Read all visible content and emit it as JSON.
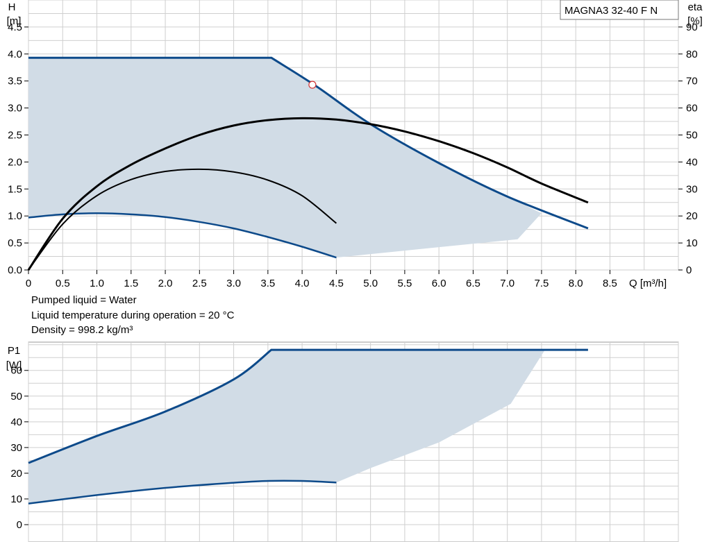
{
  "pump_model": "MAGNA3 32-40 F N",
  "liquid_info": [
    "Pumped liquid = Water",
    "Liquid temperature during operation = 20 °C",
    "Density = 998.2 kg/m³"
  ],
  "colors": {
    "curve_blue": "#0d4a8a",
    "area_fill": "#d1dce6",
    "efficiency_black": "#000000",
    "grid": "#cfcfcf",
    "duty_point": "#d33333"
  },
  "chart_data": [
    {
      "type": "line",
      "xlabel": "Q [m³/h]",
      "ylabel_line1": "H",
      "ylabel_line2": "[m]",
      "y2label_line1": "eta",
      "y2label_line2": "[%]",
      "xlim": [
        0,
        9.5
      ],
      "ylim": [
        0,
        5.0
      ],
      "y2lim": [
        0,
        100
      ],
      "grid": true,
      "x_ticks": [
        "0",
        "0.5",
        "1.0",
        "1.5",
        "2.0",
        "2.5",
        "3.0",
        "3.5",
        "4.0",
        "4.5",
        "5.0",
        "5.5",
        "6.0",
        "6.5",
        "7.0",
        "7.5",
        "8.0",
        "8.5"
      ],
      "x_tick_values": [
        0,
        0.5,
        1.0,
        1.5,
        2.0,
        2.5,
        3.0,
        3.5,
        4.0,
        4.5,
        5.0,
        5.5,
        6.0,
        6.5,
        7.0,
        7.5,
        8.0,
        8.5
      ],
      "y_ticks": [
        "0.0",
        "0.5",
        "1.0",
        "1.5",
        "2.0",
        "2.5",
        "3.0",
        "3.5",
        "4.0",
        "4.5"
      ],
      "y_tick_values": [
        0,
        0.5,
        1.0,
        1.5,
        2.0,
        2.5,
        3.0,
        3.5,
        4.0,
        4.5
      ],
      "y2_ticks": [
        "0",
        "10",
        "20",
        "30",
        "40",
        "50",
        "60",
        "70",
        "80",
        "90"
      ],
      "y2_tick_values": [
        0,
        10,
        20,
        30,
        40,
        50,
        60,
        70,
        80,
        90
      ],
      "series": [
        {
          "role": "max_head_curve",
          "axis": "left",
          "x": [
            0,
            3.55,
            4.2,
            5.0,
            6.0,
            7.0,
            8.18
          ],
          "y": [
            3.93,
            3.93,
            3.41,
            2.7,
            1.98,
            1.36,
            0.77
          ]
        },
        {
          "role": "min_head_curve",
          "axis": "left",
          "x": [
            0,
            0.5,
            1.0,
            1.5,
            2.0,
            2.5,
            3.0,
            3.5,
            4.0,
            4.5
          ],
          "y": [
            0.97,
            1.03,
            1.05,
            1.03,
            0.98,
            0.89,
            0.77,
            0.61,
            0.43,
            0.23
          ]
        },
        {
          "role": "operating_area",
          "axis": "left",
          "x": [
            0,
            3.55,
            4.2,
            5.0,
            6.0,
            7.0,
            7.5,
            7.15,
            4.5,
            4.0,
            3.5,
            3.0,
            2.5,
            2.0,
            1.5,
            1.0,
            0.5,
            0
          ],
          "y": [
            3.93,
            3.93,
            3.41,
            2.7,
            1.98,
            1.36,
            1.05,
            0.57,
            0.23,
            0.43,
            0.61,
            0.77,
            0.89,
            0.98,
            1.03,
            1.05,
            1.03,
            0.97
          ]
        },
        {
          "role": "efficiency_max_curve",
          "axis": "right",
          "x": [
            0,
            0.5,
            1.0,
            1.5,
            2.0,
            2.5,
            3.0,
            3.5,
            4.0,
            4.5,
            5.0,
            5.5,
            6.0,
            6.5,
            7.0,
            7.5,
            8.18
          ],
          "y": [
            0,
            19,
            31,
            39,
            45,
            50,
            53.5,
            55.5,
            56.2,
            55.7,
            54,
            51.3,
            47.7,
            43.3,
            38,
            32,
            25
          ]
        },
        {
          "role": "efficiency_min_curve",
          "axis": "right",
          "x": [
            0,
            0.5,
            1.0,
            1.5,
            2.0,
            2.5,
            3.0,
            3.5,
            4.0,
            4.5
          ],
          "y": [
            0,
            17,
            27.5,
            33.5,
            36.5,
            37.3,
            36.3,
            33.3,
            27.5,
            17.3
          ]
        }
      ],
      "duty_point": {
        "x": 4.15,
        "y": 3.43
      }
    },
    {
      "type": "line",
      "ylabel_line1": "P1",
      "ylabel_line2": "[W]",
      "xlim": [
        0,
        9.5
      ],
      "ylim": [
        0,
        71
      ],
      "grid": true,
      "y_ticks": [
        "0",
        "10",
        "20",
        "30",
        "40",
        "50",
        "60"
      ],
      "y_tick_values": [
        0,
        10,
        20,
        30,
        40,
        50,
        60
      ],
      "series": [
        {
          "role": "max_power_curve",
          "x": [
            0,
            1.0,
            2.0,
            3.0,
            3.55,
            5.0,
            6.0,
            7.0,
            8.18
          ],
          "y": [
            24,
            34.5,
            44,
            56.5,
            68,
            68,
            68,
            68,
            68
          ]
        },
        {
          "role": "min_power_curve",
          "x": [
            0,
            1.0,
            2.0,
            3.0,
            3.5,
            4.0,
            4.5
          ],
          "y": [
            8.2,
            11.5,
            14.3,
            16.3,
            17,
            17,
            16.4
          ]
        },
        {
          "role": "power_area",
          "x": [
            0,
            1.0,
            2.0,
            3.0,
            3.55,
            5.0,
            6.0,
            7.0,
            7.55,
            7.05,
            6.0,
            5.0,
            4.5,
            4.0,
            3.5,
            3.0,
            2.0,
            1.0,
            0
          ],
          "y": [
            24,
            34.5,
            44,
            56.5,
            68,
            68,
            68,
            68,
            68,
            47,
            32,
            22,
            16.4,
            17,
            17,
            16.3,
            14.3,
            11.5,
            8.2
          ]
        }
      ]
    }
  ]
}
